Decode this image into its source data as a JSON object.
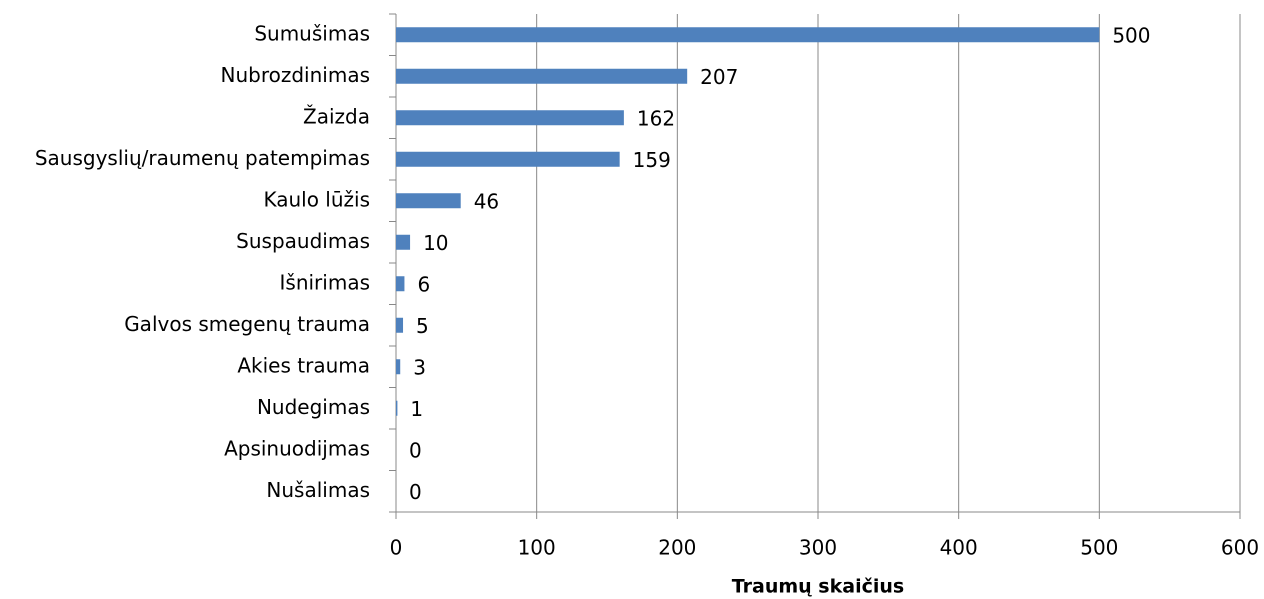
{
  "chart_data": {
    "type": "bar",
    "orientation": "horizontal",
    "categories": [
      "Sumušimas",
      "Nubrozdinimas",
      "Žaizda",
      "Sausgyslių/raumenų patempimas",
      "Kaulo lūžis",
      "Suspaudimas",
      "Išnirimas",
      "Galvos smegenų trauma",
      "Akies trauma",
      "Nudegimas",
      "Apsinuodijmas",
      "Nušalimas"
    ],
    "values": [
      500,
      207,
      162,
      159,
      46,
      10,
      6,
      5,
      3,
      1,
      0,
      0
    ],
    "color": "#4f81bd",
    "xlabel": "Traumų skaičius",
    "xlim": [
      0,
      600
    ],
    "xticks": [
      0,
      100,
      200,
      300,
      400,
      500,
      600
    ],
    "grid": true
  }
}
